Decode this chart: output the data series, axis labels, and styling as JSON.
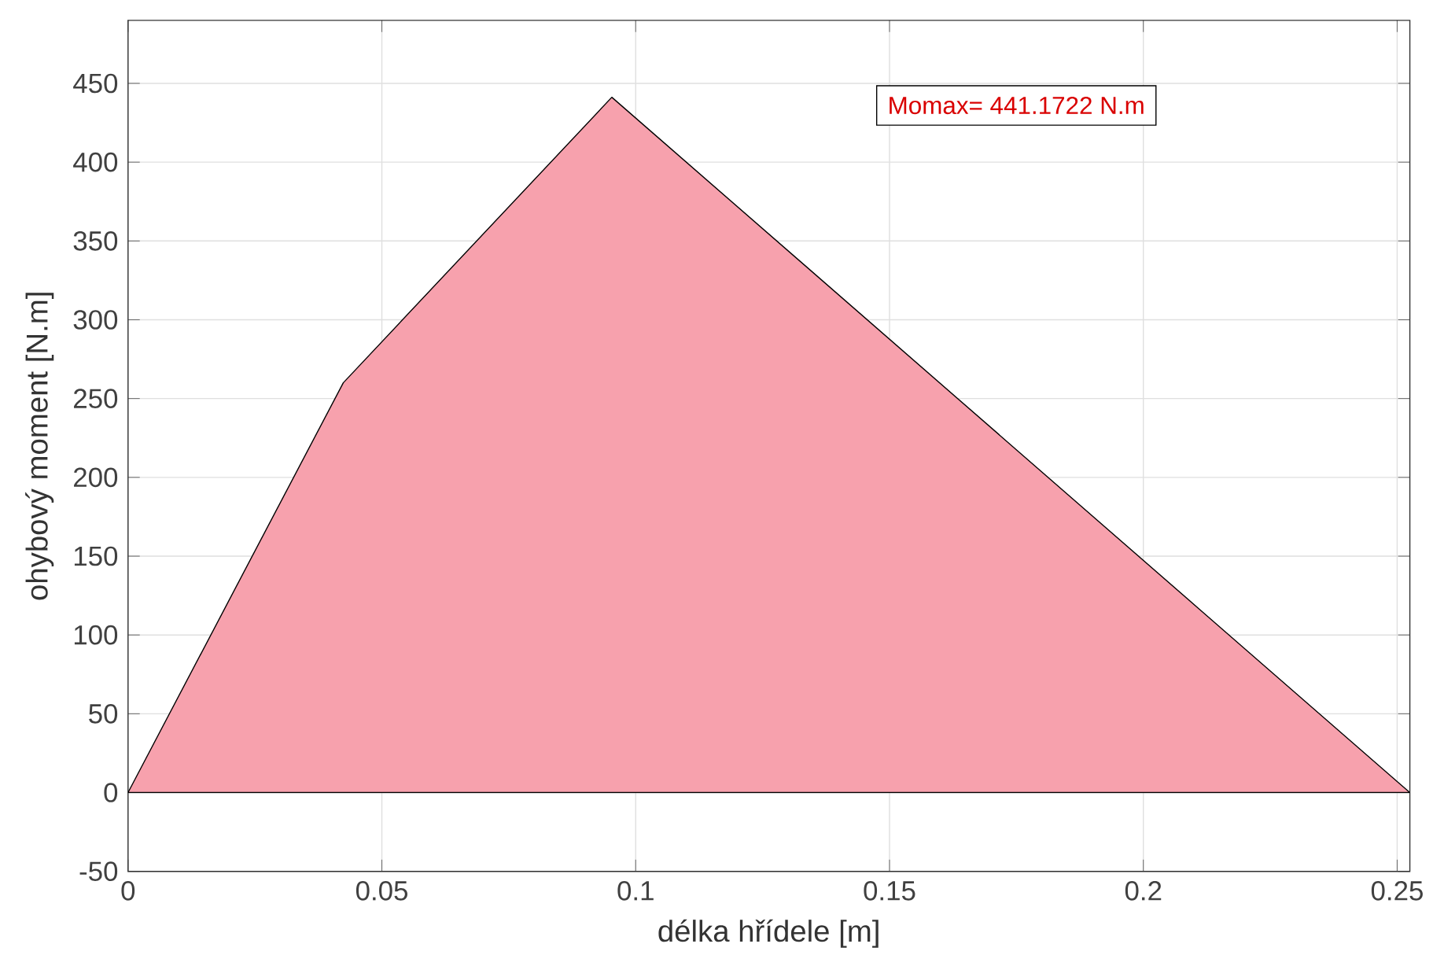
{
  "chart_data": {
    "type": "area",
    "xlabel": "délka hřídele [m]",
    "ylabel": "ohybový moment [N.m]",
    "annotations": [
      "Momax= 441.1722 N.m"
    ],
    "x": [
      0,
      0.0424,
      0.0953,
      0.2525
    ],
    "series": [
      {
        "color": "#f7a1ad",
        "values": [
          0,
          260,
          441.1722,
          0
        ]
      }
    ],
    "xlim": [
      0,
      0.2525
    ],
    "ylim": [
      -50,
      490
    ],
    "xticks": [
      0,
      0.05,
      0.1,
      0.15,
      0.2,
      0.25
    ],
    "yticks": [
      -50,
      0,
      50,
      100,
      150,
      200,
      250,
      300,
      350,
      400,
      450
    ],
    "grid": true
  }
}
